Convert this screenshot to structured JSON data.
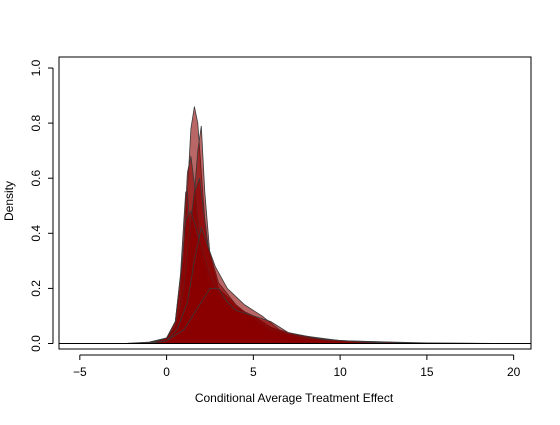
{
  "chart_data": {
    "type": "area",
    "title": "",
    "xlabel": "Conditional Average Treatment Effect",
    "ylabel": "Density",
    "xlim": [
      -6.2,
      21.0
    ],
    "ylim": [
      -0.02,
      1.04
    ],
    "xticks": [
      -5,
      0,
      5,
      10,
      15,
      20
    ],
    "yticks": [
      0.0,
      0.2,
      0.4,
      0.6,
      0.8,
      1.0
    ],
    "grid": false,
    "legend": "none",
    "fill_color": "#8b0000",
    "fill_opacity": 0.6,
    "outline_color": "#3a3a3a",
    "baseline": 0,
    "series": [
      {
        "x": [
          -2.5,
          -1,
          0,
          0.5,
          0.8,
          1.0,
          1.2,
          1.4,
          1.6,
          1.8,
          2.0,
          2.2,
          2.5,
          3,
          3.5,
          4,
          5,
          6,
          7,
          8,
          9,
          10,
          12,
          15,
          20
        ],
        "y": [
          0,
          0.005,
          0.02,
          0.06,
          0.15,
          0.3,
          0.55,
          0.78,
          0.86,
          0.8,
          0.62,
          0.45,
          0.3,
          0.2,
          0.16,
          0.13,
          0.1,
          0.06,
          0.035,
          0.02,
          0.012,
          0.007,
          0.003,
          0.001,
          0
        ]
      },
      {
        "x": [
          -2,
          -1,
          0,
          0.5,
          1.0,
          1.2,
          1.4,
          1.6,
          1.8,
          2.0,
          2.2,
          2.5,
          3,
          4,
          5,
          7,
          10,
          15,
          20
        ],
        "y": [
          0,
          0.005,
          0.02,
          0.05,
          0.15,
          0.25,
          0.4,
          0.55,
          0.7,
          0.79,
          0.55,
          0.32,
          0.2,
          0.14,
          0.08,
          0.035,
          0.01,
          0.002,
          0
        ]
      },
      {
        "x": [
          -1.5,
          -0.5,
          0,
          0.5,
          0.8,
          1.0,
          1.2,
          1.4,
          1.6,
          1.8,
          2.0,
          2.5,
          3,
          4,
          5,
          7,
          10,
          15
        ],
        "y": [
          0,
          0.005,
          0.02,
          0.08,
          0.2,
          0.38,
          0.62,
          0.68,
          0.58,
          0.45,
          0.32,
          0.2,
          0.15,
          0.1,
          0.07,
          0.03,
          0.01,
          0
        ]
      },
      {
        "x": [
          -1,
          0,
          0.5,
          0.8,
          1.0,
          1.1,
          1.2,
          1.4,
          1.6,
          1.8,
          2.0,
          2.5,
          3,
          4,
          5,
          6,
          8,
          12
        ],
        "y": [
          0,
          0.02,
          0.08,
          0.25,
          0.45,
          0.55,
          0.55,
          0.35,
          0.25,
          0.2,
          0.17,
          0.13,
          0.1,
          0.07,
          0.04,
          0.02,
          0.008,
          0
        ]
      },
      {
        "x": [
          -1,
          0,
          0.5,
          1.0,
          1.3,
          1.6,
          1.9,
          2.1,
          2.4,
          3,
          4,
          5,
          6,
          8,
          12
        ],
        "y": [
          0,
          0.02,
          0.06,
          0.2,
          0.4,
          0.55,
          0.6,
          0.5,
          0.35,
          0.22,
          0.14,
          0.09,
          0.04,
          0.01,
          0
        ]
      },
      {
        "x": [
          -1,
          0,
          0.5,
          0.9,
          1.1,
          1.4,
          1.7,
          2.0,
          2.5,
          3,
          4,
          5,
          6,
          8,
          12
        ],
        "y": [
          0,
          0.02,
          0.08,
          0.3,
          0.45,
          0.48,
          0.42,
          0.35,
          0.25,
          0.18,
          0.12,
          0.1,
          0.05,
          0.015,
          0
        ]
      },
      {
        "x": [
          -1,
          0,
          0.6,
          1.2,
          1.6,
          2.0,
          2.4,
          2.8,
          3.5,
          4.5,
          5.5,
          6.5,
          8,
          12
        ],
        "y": [
          0,
          0.01,
          0.05,
          0.15,
          0.3,
          0.42,
          0.35,
          0.28,
          0.2,
          0.14,
          0.1,
          0.05,
          0.02,
          0
        ]
      },
      {
        "x": [
          -1,
          0,
          1,
          1.5,
          2,
          2.5,
          3,
          3.5,
          4,
          5,
          6,
          7,
          9,
          13
        ],
        "y": [
          0,
          0.01,
          0.05,
          0.1,
          0.15,
          0.2,
          0.2,
          0.15,
          0.12,
          0.1,
          0.08,
          0.04,
          0.015,
          0
        ]
      }
    ]
  }
}
